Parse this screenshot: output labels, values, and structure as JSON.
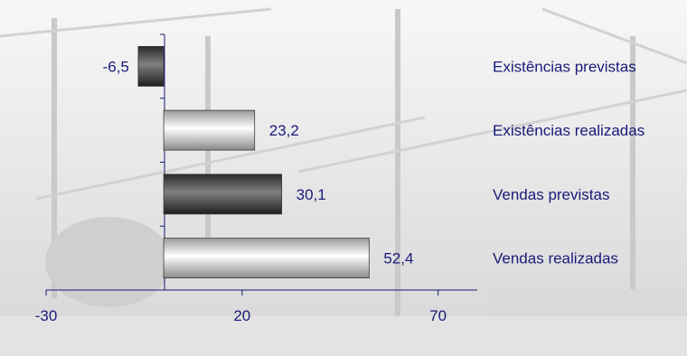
{
  "chart_data": {
    "type": "bar",
    "orientation": "horizontal",
    "title": "",
    "xlabel": "",
    "ylabel": "",
    "categories": [
      "Existências previstas",
      "Existências realizadas",
      "Vendas previstas",
      "Vendas realizadas"
    ],
    "values": [
      -6.5,
      23.2,
      30.1,
      52.4
    ],
    "value_labels": [
      "-6,5",
      "23,2",
      "30,1",
      "52,4"
    ],
    "bar_styles": [
      "dark",
      "light",
      "dark",
      "light"
    ],
    "xlim": [
      -30,
      80
    ],
    "x_ticks": [
      -30,
      20,
      70
    ],
    "x_tick_labels": [
      "-30",
      "20",
      "70"
    ],
    "grid": false,
    "legend": "none",
    "category_label_position": "right",
    "colors": {
      "text": "#1a1a7a",
      "axis": "#1a1a7a",
      "bar_dark": "#4a4a4a",
      "bar_light": "#f2f2f2",
      "bar_outline": "#3a3a3a"
    }
  }
}
